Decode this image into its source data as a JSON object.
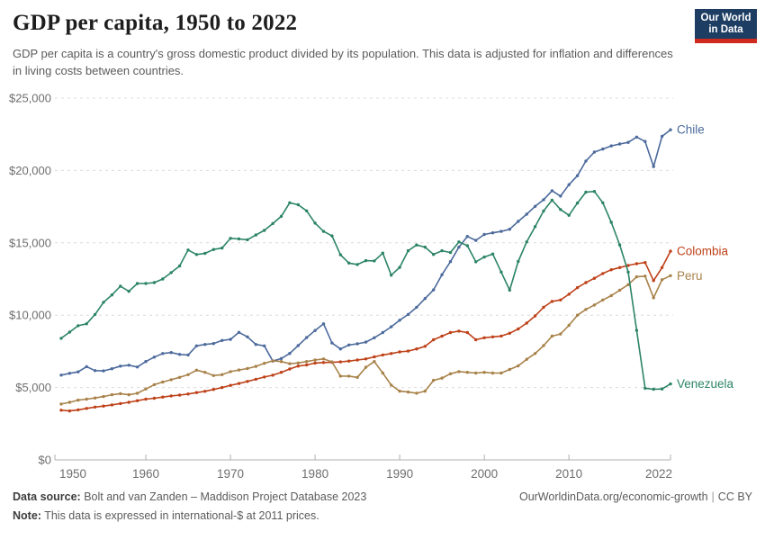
{
  "header": {
    "title": "GDP per capita, 1950 to 2022",
    "subtitle": "GDP per capita is a country's gross domestic product divided by its population. This data is adjusted for inflation and differences in living costs between countries.",
    "logo": {
      "line1": "Our World",
      "line2": "in Data",
      "bg_color": "#1d3d63",
      "stripe_color": "#cf2a1d"
    }
  },
  "chart_data": {
    "type": "line",
    "title": "GDP per capita, 1950 to 2022",
    "xlabel": "",
    "ylabel": "",
    "xlim": [
      1950,
      2022
    ],
    "ylim": [
      0,
      25000
    ],
    "grid": "horizontal-dashed",
    "legend_position": "end-of-line-labels",
    "y_ticks": [
      "$0",
      "$5,000",
      "$10,000",
      "$15,000",
      "$20,000",
      "$25,000"
    ],
    "y_tick_values": [
      0,
      5000,
      10000,
      15000,
      20000,
      25000
    ],
    "x_ticks": [
      "1950",
      "1960",
      "1970",
      "1980",
      "1990",
      "2000",
      "2010",
      "2022"
    ],
    "x_tick_values": [
      1950,
      1960,
      1970,
      1980,
      1990,
      2000,
      2010,
      2022
    ],
    "years": [
      1950,
      1951,
      1952,
      1953,
      1954,
      1955,
      1956,
      1957,
      1958,
      1959,
      1960,
      1961,
      1962,
      1963,
      1964,
      1965,
      1966,
      1967,
      1968,
      1969,
      1970,
      1971,
      1972,
      1973,
      1974,
      1975,
      1976,
      1977,
      1978,
      1979,
      1980,
      1981,
      1982,
      1983,
      1984,
      1985,
      1986,
      1987,
      1988,
      1989,
      1990,
      1991,
      1992,
      1993,
      1994,
      1995,
      1996,
      1997,
      1998,
      1999,
      2000,
      2001,
      2002,
      2003,
      2004,
      2005,
      2006,
      2007,
      2008,
      2009,
      2010,
      2011,
      2012,
      2013,
      2014,
      2015,
      2016,
      2017,
      2018,
      2019,
      2020,
      2021,
      2022
    ],
    "series": [
      {
        "name": "Chile",
        "color": "#4C6A9C",
        "values": [
          5860,
          5980,
          6080,
          6440,
          6170,
          6150,
          6300,
          6480,
          6540,
          6420,
          6800,
          7100,
          7350,
          7420,
          7290,
          7250,
          7880,
          7980,
          8040,
          8250,
          8330,
          8810,
          8500,
          7980,
          7880,
          6830,
          7000,
          7360,
          7900,
          8450,
          8940,
          9400,
          8080,
          7670,
          7940,
          8020,
          8140,
          8440,
          8800,
          9200,
          9650,
          10050,
          10550,
          11150,
          11750,
          12800,
          13700,
          14700,
          15440,
          15170,
          15580,
          15690,
          15790,
          15940,
          16480,
          16980,
          17520,
          17980,
          18600,
          18230,
          19020,
          19640,
          20650,
          21270,
          21480,
          21700,
          21830,
          21940,
          22310,
          22000,
          20270,
          22360,
          22810
        ]
      },
      {
        "name": "Colombia",
        "color": "#BE4118",
        "values": [
          3430,
          3380,
          3460,
          3560,
          3650,
          3720,
          3800,
          3890,
          3980,
          4090,
          4200,
          4260,
          4340,
          4420,
          4480,
          4550,
          4650,
          4740,
          4870,
          5000,
          5150,
          5280,
          5420,
          5570,
          5730,
          5850,
          6050,
          6280,
          6480,
          6560,
          6690,
          6730,
          6740,
          6770,
          6830,
          6900,
          6980,
          7120,
          7250,
          7350,
          7460,
          7520,
          7670,
          7850,
          8300,
          8550,
          8800,
          8900,
          8800,
          8300,
          8440,
          8500,
          8560,
          8750,
          9050,
          9450,
          9950,
          10550,
          10950,
          11050,
          11450,
          11900,
          12250,
          12550,
          12880,
          13140,
          13290,
          13440,
          13560,
          13640,
          12390,
          13290,
          14420
        ]
      },
      {
        "name": "Peru",
        "color": "#A8824A",
        "values": [
          3860,
          3980,
          4130,
          4200,
          4280,
          4380,
          4500,
          4580,
          4500,
          4600,
          4900,
          5200,
          5380,
          5540,
          5700,
          5890,
          6200,
          6050,
          5830,
          5890,
          6100,
          6210,
          6310,
          6460,
          6670,
          6850,
          6800,
          6650,
          6700,
          6800,
          6900,
          6980,
          6770,
          5790,
          5790,
          5700,
          6400,
          6800,
          6000,
          5170,
          4750,
          4690,
          4610,
          4750,
          5500,
          5650,
          5950,
          6100,
          6050,
          6000,
          6050,
          6000,
          6000,
          6250,
          6500,
          6950,
          7350,
          7900,
          8550,
          8700,
          9300,
          10000,
          10400,
          10700,
          11050,
          11350,
          11730,
          12110,
          12650,
          12700,
          11200,
          12450,
          12730
        ]
      },
      {
        "name": "Venezuela",
        "color": "#2C8465",
        "values": [
          8400,
          8830,
          9270,
          9400,
          10050,
          10890,
          11400,
          12000,
          11650,
          12190,
          12190,
          12250,
          12500,
          12940,
          13400,
          14500,
          14190,
          14270,
          14540,
          14640,
          15310,
          15270,
          15210,
          15540,
          15860,
          16330,
          16830,
          17770,
          17630,
          17210,
          16360,
          15790,
          15480,
          14170,
          13600,
          13500,
          13770,
          13750,
          14290,
          12770,
          13300,
          14450,
          14850,
          14700,
          14200,
          14450,
          14330,
          15060,
          14800,
          13690,
          14020,
          14230,
          12980,
          11730,
          13710,
          15060,
          16120,
          17200,
          17950,
          17300,
          16900,
          17750,
          18500,
          18550,
          17770,
          16420,
          14860,
          12980,
          8950,
          4950,
          4880,
          4900,
          5250
        ]
      }
    ]
  },
  "footer": {
    "source_label": "Data source:",
    "source_text": "Bolt and van Zanden – Maddison Project Database 2023",
    "note_label": "Note:",
    "note_text": "This data is expressed in international-$ at 2011 prices.",
    "link": "OurWorldinData.org/economic-growth",
    "separator": "|",
    "license": "CC BY"
  }
}
